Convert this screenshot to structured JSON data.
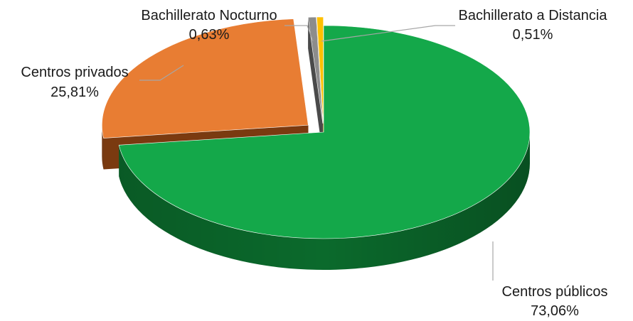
{
  "chart_data": {
    "type": "pie",
    "style": "3d-exploded",
    "title": "",
    "slices": [
      {
        "label": "Centros públicos",
        "value": 73.06,
        "value_text": "73,06%",
        "color": "#14a84a",
        "side_color": "#0b6a2c"
      },
      {
        "label": "Centros privados",
        "value": 25.81,
        "value_text": "25,81%",
        "color": "#e87d33",
        "side_color": "#7a3a10"
      },
      {
        "label": "Bachillerato Nocturno",
        "value": 0.63,
        "value_text": "0,63%",
        "color": "#8c8c8c",
        "side_color": "#4a4a4a"
      },
      {
        "label": "Bachillerato a Distancia",
        "value": 0.51,
        "value_text": "0,51%",
        "color": "#ffc000",
        "side_color": "#a87e00"
      }
    ],
    "legend": "none"
  }
}
